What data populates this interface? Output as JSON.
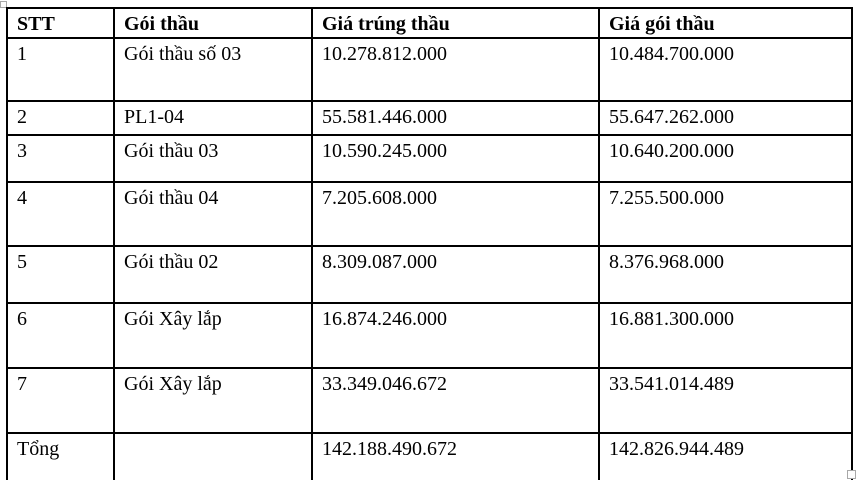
{
  "table": {
    "columns": [
      "STT",
      "Gói thầu",
      "Giá trúng thầu",
      "Giá gói thầu"
    ],
    "rows": [
      {
        "stt": "1",
        "goi_thau": "Gói thầu số 03",
        "gia_trung_thau": "10.278.812.000",
        "gia_goi_thau": "10.484.700.000"
      },
      {
        "stt": "2",
        "goi_thau": "PL1-04",
        "gia_trung_thau": "55.581.446.000",
        "gia_goi_thau": "55.647.262.000"
      },
      {
        "stt": "3",
        "goi_thau": "Gói thầu 03",
        "gia_trung_thau": "10.590.245.000",
        "gia_goi_thau": "10.640.200.000"
      },
      {
        "stt": "4",
        "goi_thau": "Gói thầu 04",
        "gia_trung_thau": "7.205.608.000",
        "gia_goi_thau": "7.255.500.000"
      },
      {
        "stt": "5",
        "goi_thau": "Gói thầu 02",
        "gia_trung_thau": "8.309.087.000",
        "gia_goi_thau": "8.376.968.000"
      },
      {
        "stt": "6",
        "goi_thau": "Gói Xây lắp",
        "gia_trung_thau": "16.874.246.000",
        "gia_goi_thau": "16.881.300.000"
      },
      {
        "stt": "7",
        "goi_thau": "Gói Xây lắp",
        "gia_trung_thau": "33.349.046.672",
        "gia_goi_thau": "33.541.014.489"
      }
    ],
    "total": {
      "label": "Tổng",
      "goi_thau": "",
      "gia_trung_thau": "142.188.490.672",
      "gia_goi_thau": "142.826.944.489"
    }
  },
  "colors": {
    "border": "#000000",
    "text": "#000000",
    "background": "#ffffff",
    "handle_border": "#a8a8a8"
  }
}
